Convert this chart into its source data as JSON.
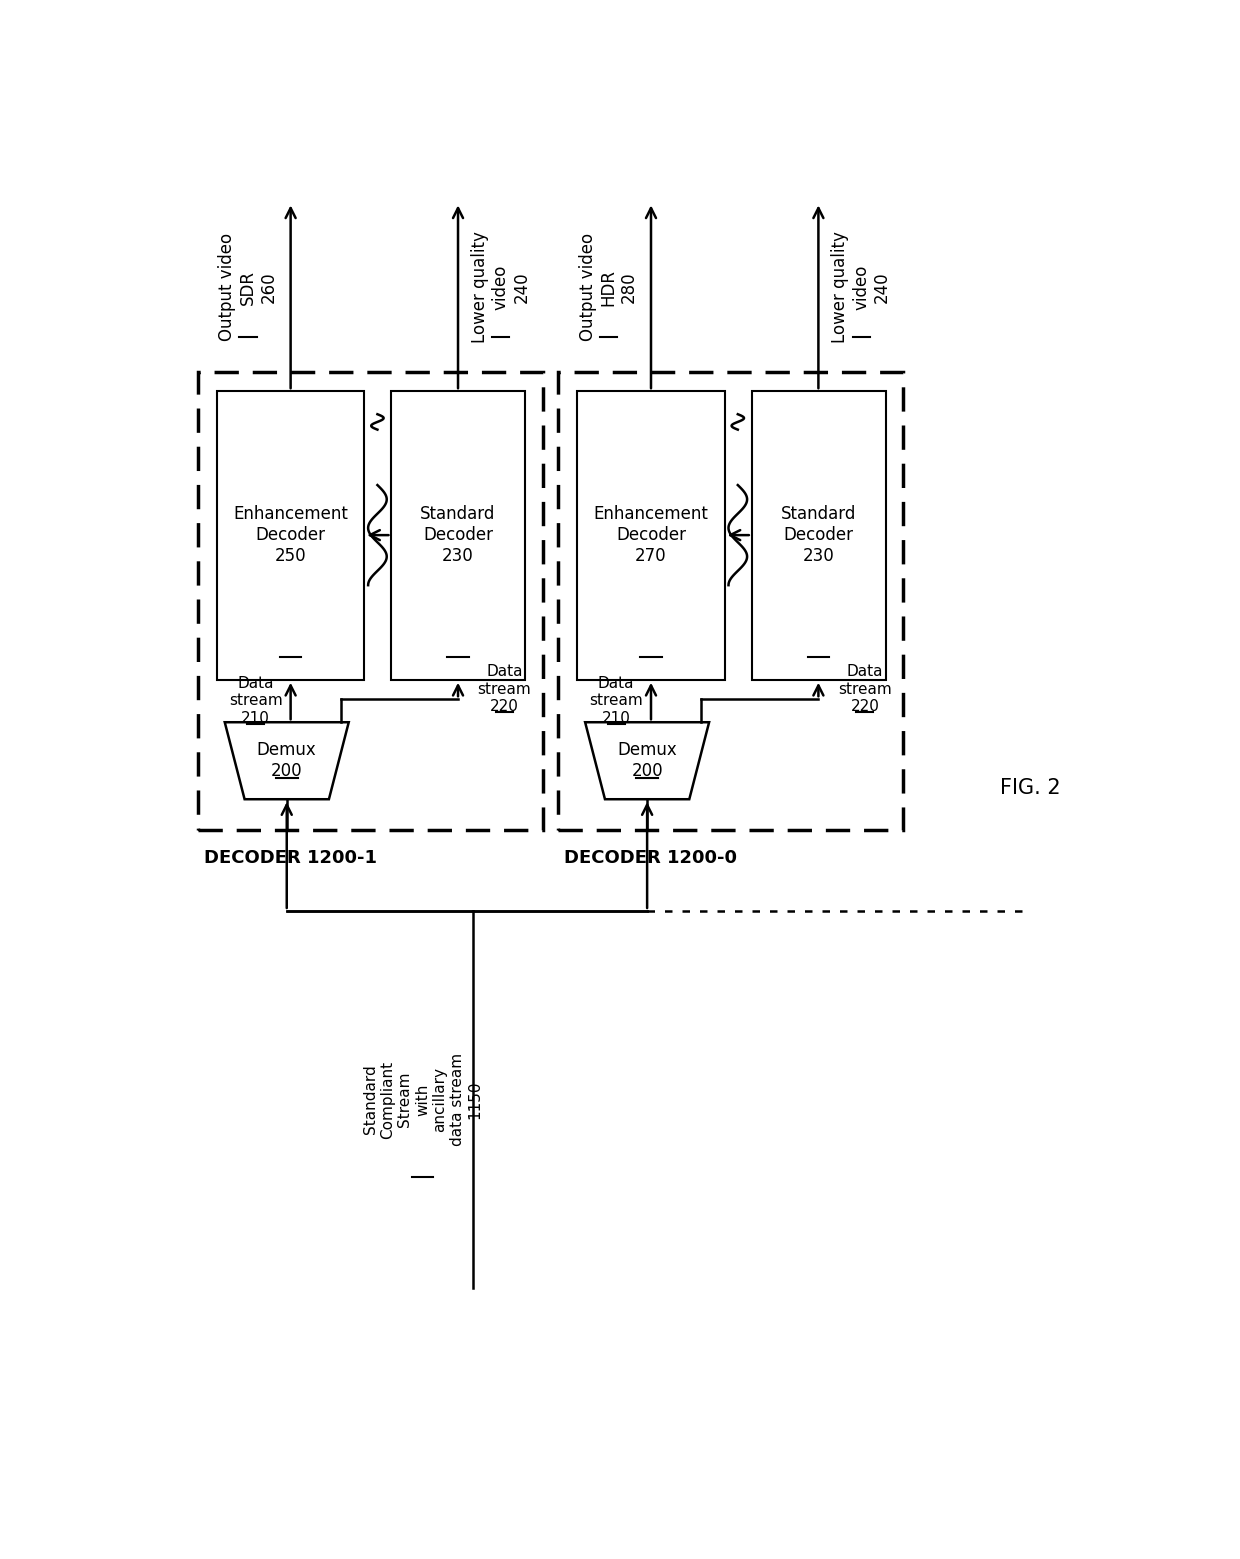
{
  "fig_width": 12.4,
  "fig_height": 15.59,
  "bg_color": "#ffffff",
  "decoder1_label": "DECODER 1200-1",
  "decoder0_label": "DECODER 1200-0",
  "fig2_label": "FIG. 2",
  "enh_dec1": "Enhancement\nDecoder\n250",
  "std_dec1": "Standard\nDecoder\n230",
  "enh_dec0": "Enhancement\nDecoder\n270",
  "std_dec0": "Standard\nDecoder\n230",
  "demux_label": "Demux\n200",
  "out_sdr": "Output video\nSDR\n260",
  "out_hdr": "Output video\nHDR\n280",
  "lq_video": "Lower quality\nvideo\n240",
  "ds210": "Data\nstream\n210",
  "ds220": "Data\nstream\n220",
  "input_stream": "Standard\nCompliant\nStream\nwith\nancillary\ndata stream\n1150"
}
